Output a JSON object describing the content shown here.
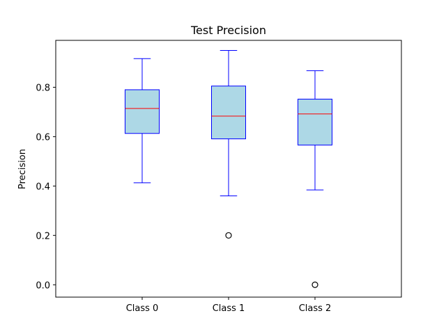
{
  "chart_data": {
    "type": "box",
    "title": "Test Precision",
    "xlabel": "",
    "ylabel": "Precision",
    "ylim": [
      -0.05,
      0.99
    ],
    "yticks": [
      0.0,
      0.2,
      0.4,
      0.6,
      0.8
    ],
    "ytick_labels": [
      "0.0",
      "0.2",
      "0.4",
      "0.6",
      "0.8"
    ],
    "grid": false,
    "categories": [
      "Class 0",
      "Class 1",
      "Class 2"
    ],
    "boxes": [
      {
        "min": 0.413,
        "q1": 0.613,
        "median": 0.714,
        "q3": 0.79,
        "max": 0.916,
        "outliers": []
      },
      {
        "min": 0.36,
        "q1": 0.591,
        "median": 0.683,
        "q3": 0.805,
        "max": 0.949,
        "outliers": [
          0.2
        ]
      },
      {
        "min": 0.384,
        "q1": 0.566,
        "median": 0.692,
        "q3": 0.752,
        "max": 0.867,
        "outliers": [
          0.0
        ]
      }
    ],
    "colors": {
      "box_fill": "#add8e6",
      "box_edge": "#0000ff",
      "whisker": "#0000ff",
      "median": "#ff0000",
      "outlier_edge": "#000000"
    }
  }
}
